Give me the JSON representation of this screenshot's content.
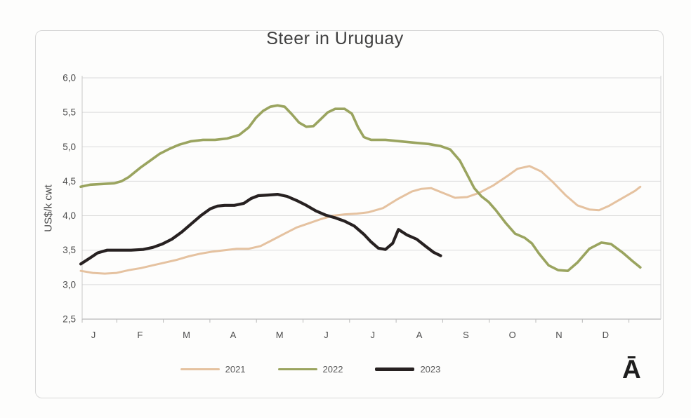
{
  "title": "Steer in Uruguay",
  "watermark": "Ā",
  "chart_data": {
    "type": "line",
    "title": "Steer in Uruguay",
    "ylabel": "US$/k cwt",
    "ylim": [
      2.5,
      6.0
    ],
    "y_ticks": [
      {
        "label": "6,0",
        "value": 6.0
      },
      {
        "label": "5,5",
        "value": 5.5
      },
      {
        "label": "5,0",
        "value": 5.0
      },
      {
        "label": "4,5",
        "value": 4.5
      },
      {
        "label": "4,0",
        "value": 4.0
      },
      {
        "label": "3,5",
        "value": 3.5
      },
      {
        "label": "3,0",
        "value": 3.0
      },
      {
        "label": "2,5",
        "value": 2.5
      }
    ],
    "x_tick_labels": [
      "J",
      "F",
      "M",
      "A",
      "M",
      "J",
      "J",
      "A",
      "S",
      "O",
      "N",
      "D"
    ],
    "x_unit": "month position (0 = start of January, 12 = end of December); weekly price series",
    "grid": "horizontal",
    "legend_position": "bottom",
    "colors": {
      "grid": "#dcdcdc",
      "axis": "#b9b9b9",
      "tick_text": "#4d4d4d",
      "title_text": "#3f3f3f",
      "background": "#fdfdfc",
      "frame_border": "#d8d8d8"
    },
    "series": [
      {
        "name": "2021",
        "color": "#e5c2a0",
        "width": 3,
        "points": [
          [
            0,
            3.2
          ],
          [
            0.25,
            3.17
          ],
          [
            0.5,
            3.16
          ],
          [
            0.75,
            3.17
          ],
          [
            1,
            3.21
          ],
          [
            1.25,
            3.24
          ],
          [
            1.5,
            3.28
          ],
          [
            1.75,
            3.32
          ],
          [
            2,
            3.36
          ],
          [
            2.25,
            3.41
          ],
          [
            2.5,
            3.45
          ],
          [
            2.75,
            3.48
          ],
          [
            3,
            3.5
          ],
          [
            3.25,
            3.52
          ],
          [
            3.5,
            3.52
          ],
          [
            3.75,
            3.56
          ],
          [
            4,
            3.65
          ],
          [
            4.25,
            3.74
          ],
          [
            4.5,
            3.83
          ],
          [
            4.75,
            3.89
          ],
          [
            5,
            3.95
          ],
          [
            5.25,
            4.0
          ],
          [
            5.5,
            4.02
          ],
          [
            5.75,
            4.03
          ],
          [
            6,
            4.05
          ],
          [
            6.3,
            4.11
          ],
          [
            6.6,
            4.24
          ],
          [
            6.9,
            4.35
          ],
          [
            7.1,
            4.39
          ],
          [
            7.3,
            4.4
          ],
          [
            7.55,
            4.33
          ],
          [
            7.8,
            4.26
          ],
          [
            8.05,
            4.27
          ],
          [
            8.3,
            4.33
          ],
          [
            8.6,
            4.44
          ],
          [
            8.9,
            4.58
          ],
          [
            9.1,
            4.68
          ],
          [
            9.35,
            4.72
          ],
          [
            9.6,
            4.64
          ],
          [
            9.85,
            4.48
          ],
          [
            10.1,
            4.3
          ],
          [
            10.35,
            4.15
          ],
          [
            10.6,
            4.09
          ],
          [
            10.8,
            4.08
          ],
          [
            11,
            4.14
          ],
          [
            11.2,
            4.22
          ],
          [
            11.4,
            4.3
          ],
          [
            11.55,
            4.36
          ],
          [
            11.66,
            4.42
          ]
        ]
      },
      {
        "name": "2022",
        "color": "#9aa45f",
        "width": 3.6,
        "points": [
          [
            0,
            4.42
          ],
          [
            0.2,
            4.45
          ],
          [
            0.45,
            4.46
          ],
          [
            0.7,
            4.47
          ],
          [
            0.85,
            4.5
          ],
          [
            1,
            4.56
          ],
          [
            1.25,
            4.7
          ],
          [
            1.45,
            4.8
          ],
          [
            1.65,
            4.9
          ],
          [
            1.85,
            4.97
          ],
          [
            2.05,
            5.03
          ],
          [
            2.3,
            5.08
          ],
          [
            2.55,
            5.1
          ],
          [
            2.8,
            5.1
          ],
          [
            3.05,
            5.12
          ],
          [
            3.3,
            5.17
          ],
          [
            3.5,
            5.28
          ],
          [
            3.65,
            5.42
          ],
          [
            3.8,
            5.52
          ],
          [
            3.95,
            5.58
          ],
          [
            4.1,
            5.6
          ],
          [
            4.25,
            5.58
          ],
          [
            4.4,
            5.47
          ],
          [
            4.55,
            5.35
          ],
          [
            4.7,
            5.29
          ],
          [
            4.85,
            5.3
          ],
          [
            5,
            5.4
          ],
          [
            5.15,
            5.5
          ],
          [
            5.3,
            5.55
          ],
          [
            5.5,
            5.55
          ],
          [
            5.65,
            5.48
          ],
          [
            5.78,
            5.28
          ],
          [
            5.9,
            5.14
          ],
          [
            6.05,
            5.1
          ],
          [
            6.35,
            5.1
          ],
          [
            6.65,
            5.08
          ],
          [
            6.95,
            5.06
          ],
          [
            7.25,
            5.04
          ],
          [
            7.5,
            5.01
          ],
          [
            7.7,
            4.96
          ],
          [
            7.9,
            4.8
          ],
          [
            8.05,
            4.6
          ],
          [
            8.2,
            4.4
          ],
          [
            8.35,
            4.28
          ],
          [
            8.5,
            4.2
          ],
          [
            8.65,
            4.08
          ],
          [
            8.85,
            3.9
          ],
          [
            9.05,
            3.74
          ],
          [
            9.25,
            3.68
          ],
          [
            9.4,
            3.6
          ],
          [
            9.55,
            3.45
          ],
          [
            9.75,
            3.28
          ],
          [
            9.95,
            3.21
          ],
          [
            10.15,
            3.2
          ],
          [
            10.35,
            3.32
          ],
          [
            10.6,
            3.52
          ],
          [
            10.85,
            3.61
          ],
          [
            11.05,
            3.59
          ],
          [
            11.3,
            3.46
          ],
          [
            11.5,
            3.34
          ],
          [
            11.66,
            3.25
          ]
        ]
      },
      {
        "name": "2023",
        "color": "#272121",
        "width": 4.2,
        "points": [
          [
            0,
            3.3
          ],
          [
            0.2,
            3.39
          ],
          [
            0.35,
            3.46
          ],
          [
            0.55,
            3.5
          ],
          [
            0.8,
            3.5
          ],
          [
            1.05,
            3.5
          ],
          [
            1.3,
            3.51
          ],
          [
            1.5,
            3.54
          ],
          [
            1.7,
            3.59
          ],
          [
            1.9,
            3.66
          ],
          [
            2.1,
            3.76
          ],
          [
            2.3,
            3.88
          ],
          [
            2.5,
            4.0
          ],
          [
            2.7,
            4.1
          ],
          [
            2.85,
            4.14
          ],
          [
            3,
            4.15
          ],
          [
            3.2,
            4.15
          ],
          [
            3.4,
            4.18
          ],
          [
            3.55,
            4.25
          ],
          [
            3.7,
            4.29
          ],
          [
            3.9,
            4.3
          ],
          [
            4.1,
            4.31
          ],
          [
            4.3,
            4.28
          ],
          [
            4.5,
            4.22
          ],
          [
            4.7,
            4.15
          ],
          [
            4.9,
            4.07
          ],
          [
            5.1,
            4.01
          ],
          [
            5.3,
            3.97
          ],
          [
            5.5,
            3.92
          ],
          [
            5.7,
            3.85
          ],
          [
            5.9,
            3.73
          ],
          [
            6.05,
            3.62
          ],
          [
            6.2,
            3.53
          ],
          [
            6.35,
            3.51
          ],
          [
            6.5,
            3.6
          ],
          [
            6.62,
            3.8
          ],
          [
            6.8,
            3.72
          ],
          [
            7,
            3.66
          ],
          [
            7.2,
            3.55
          ],
          [
            7.35,
            3.47
          ],
          [
            7.5,
            3.42
          ]
        ]
      }
    ]
  }
}
